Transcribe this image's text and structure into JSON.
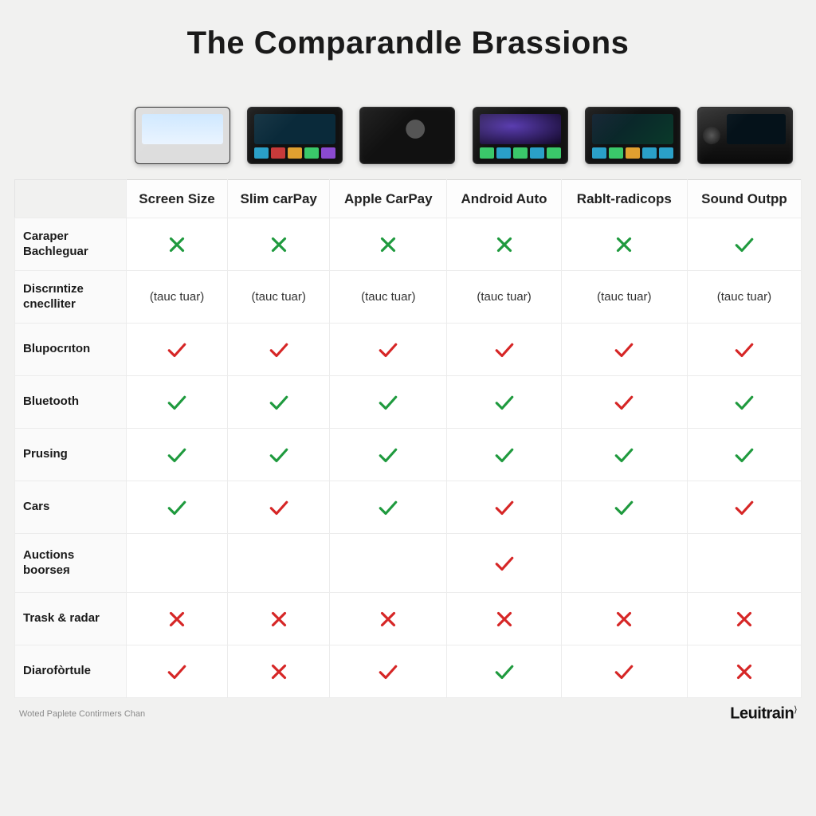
{
  "title": "The Comparandle Brassions",
  "footer_note": "Woted Paplete Contirmers Chan",
  "brand": "Leuitrain",
  "colors": {
    "green": "#1f9a3e",
    "red": "#d62626",
    "bg": "#f1f1f0",
    "border": "#ececec"
  },
  "columns": [
    "Screen Size",
    "Slim carPay",
    "Apple CarPay",
    "Android Auto",
    "Rablt-radicops",
    "Sound Outpp"
  ],
  "rows": [
    {
      "label": "Caraper Bachleguar",
      "cells": [
        "x-green",
        "x-green",
        "x-green",
        "x-green",
        "x-green",
        "check-green"
      ]
    },
    {
      "label": "Discrıntize cneclliter",
      "cells": [
        "(tauc tuar)",
        "(tauc tuar)",
        "(tauc tuar)",
        "(tauc tuar)",
        "(tauc tuar)",
        "(tauc tuar)"
      ]
    },
    {
      "label": "Blupocrıton",
      "cells": [
        "check-red",
        "check-red",
        "check-red",
        "check-red",
        "check-red",
        "check-red"
      ]
    },
    {
      "label": "Bluetooth",
      "cells": [
        "check-green",
        "check-green",
        "check-green",
        "check-green",
        "check-red",
        "check-green"
      ]
    },
    {
      "label": "Prusing",
      "cells": [
        "check-green",
        "check-green",
        "check-green",
        "check-green",
        "check-green",
        "check-green"
      ]
    },
    {
      "label": "Cars",
      "cells": [
        "check-green",
        "check-red",
        "check-green",
        "check-red",
        "check-green",
        "check-red"
      ]
    },
    {
      "label": "Auctions boorseя",
      "cells": [
        "",
        "",
        "",
        "check-red",
        "",
        ""
      ]
    },
    {
      "label": "Trask & radar",
      "cells": [
        "x-red",
        "x-red",
        "x-red",
        "x-red",
        "x-red",
        "x-red"
      ]
    },
    {
      "label": "Diarofòrtule",
      "cells": [
        "check-red",
        "x-red",
        "check-red",
        "check-green",
        "check-red",
        "x-red"
      ]
    }
  ]
}
